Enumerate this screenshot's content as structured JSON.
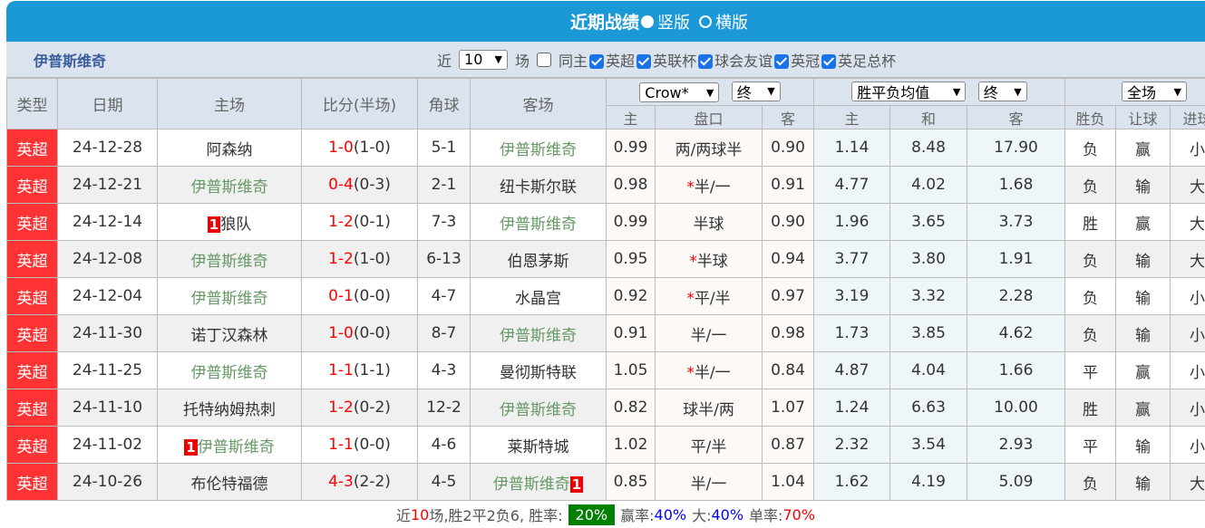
{
  "title": {
    "text": "近期战绩",
    "option_vertical": "竖版",
    "option_horizontal": "横版",
    "selected": "竖版"
  },
  "filter": {
    "team": "伊普斯维奇",
    "near_label": "近",
    "count": "10",
    "games_label": "场",
    "same_home_label": "同主",
    "same_home_checked": false,
    "competitions": [
      {
        "label": "英超",
        "checked": true
      },
      {
        "label": "英联杯",
        "checked": true
      },
      {
        "label": "球会友谊",
        "checked": true
      },
      {
        "label": "英冠",
        "checked": true
      },
      {
        "label": "英足总杯",
        "checked": true
      }
    ]
  },
  "headers": {
    "type": "类型",
    "date": "日期",
    "home": "主场",
    "score": "比分(半场)",
    "corner": "角球",
    "away": "客场",
    "odds_company": "Crow*",
    "odds_phase": "终",
    "euro_type": "胜平负均值",
    "euro_phase": "终",
    "range": "全场",
    "sub": {
      "ah_home": "主",
      "ah_line": "盘口",
      "ah_away": "客",
      "eu_home": "主",
      "eu_draw": "和",
      "eu_away": "客",
      "result": "胜负",
      "handicap": "让球",
      "goals": "进球"
    }
  },
  "rows": [
    {
      "league": "英超",
      "date": "24-12-28",
      "home": "阿森纳",
      "home_card": "",
      "score": "1-0",
      "half": "(1-0)",
      "corner": "5-1",
      "away": "伊普斯维奇",
      "away_card": "",
      "ah_home": "0.99",
      "ah_star": "",
      "ah_line": "两/两球半",
      "ah_away": "0.90",
      "eu_home": "1.14",
      "eu_draw": "8.48",
      "eu_away": "17.90",
      "result": "负",
      "handicap": "赢",
      "goals": "小",
      "ips": "away"
    },
    {
      "league": "英超",
      "date": "24-12-21",
      "home": "伊普斯维奇",
      "home_card": "",
      "score": "0-4",
      "half": "(0-3)",
      "corner": "2-1",
      "away": "纽卡斯尔联",
      "away_card": "",
      "ah_home": "0.98",
      "ah_star": "*",
      "ah_line": "半/一",
      "ah_away": "0.91",
      "eu_home": "4.77",
      "eu_draw": "4.02",
      "eu_away": "1.68",
      "result": "负",
      "handicap": "输",
      "goals": "大",
      "ips": "home"
    },
    {
      "league": "英超",
      "date": "24-12-14",
      "home": "狼队",
      "home_card": "1",
      "score": "1-2",
      "half": "(0-1)",
      "corner": "7-3",
      "away": "伊普斯维奇",
      "away_card": "",
      "ah_home": "0.99",
      "ah_star": "",
      "ah_line": "半球",
      "ah_away": "0.90",
      "eu_home": "1.96",
      "eu_draw": "3.65",
      "eu_away": "3.73",
      "result": "胜",
      "handicap": "赢",
      "goals": "大",
      "ips": "away"
    },
    {
      "league": "英超",
      "date": "24-12-08",
      "home": "伊普斯维奇",
      "home_card": "",
      "score": "1-2",
      "half": "(1-0)",
      "corner": "6-13",
      "away": "伯恩茅斯",
      "away_card": "",
      "ah_home": "0.95",
      "ah_star": "*",
      "ah_line": "半球",
      "ah_away": "0.94",
      "eu_home": "3.77",
      "eu_draw": "3.80",
      "eu_away": "1.91",
      "result": "负",
      "handicap": "输",
      "goals": "大",
      "ips": "home"
    },
    {
      "league": "英超",
      "date": "24-12-04",
      "home": "伊普斯维奇",
      "home_card": "",
      "score": "0-1",
      "half": "(0-0)",
      "corner": "4-7",
      "away": "水晶宫",
      "away_card": "",
      "ah_home": "0.92",
      "ah_star": "*",
      "ah_line": "平/半",
      "ah_away": "0.97",
      "eu_home": "3.19",
      "eu_draw": "3.32",
      "eu_away": "2.28",
      "result": "负",
      "handicap": "输",
      "goals": "小",
      "ips": "home"
    },
    {
      "league": "英超",
      "date": "24-11-30",
      "home": "诺丁汉森林",
      "home_card": "",
      "score": "1-0",
      "half": "(0-0)",
      "corner": "8-7",
      "away": "伊普斯维奇",
      "away_card": "",
      "ah_home": "0.91",
      "ah_star": "",
      "ah_line": "半/一",
      "ah_away": "0.98",
      "eu_home": "1.73",
      "eu_draw": "3.85",
      "eu_away": "4.62",
      "result": "负",
      "handicap": "输",
      "goals": "小",
      "ips": "away"
    },
    {
      "league": "英超",
      "date": "24-11-25",
      "home": "伊普斯维奇",
      "home_card": "",
      "score": "1-1",
      "half": "(1-1)",
      "corner": "4-3",
      "away": "曼彻斯特联",
      "away_card": "",
      "ah_home": "1.05",
      "ah_star": "*",
      "ah_line": "半/一",
      "ah_away": "0.84",
      "eu_home": "4.87",
      "eu_draw": "4.04",
      "eu_away": "1.66",
      "result": "平",
      "handicap": "赢",
      "goals": "小",
      "ips": "home"
    },
    {
      "league": "英超",
      "date": "24-11-10",
      "home": "托特纳姆热刺",
      "home_card": "",
      "score": "1-2",
      "half": "(0-2)",
      "corner": "12-2",
      "away": "伊普斯维奇",
      "away_card": "",
      "ah_home": "0.82",
      "ah_star": "",
      "ah_line": "球半/两",
      "ah_away": "1.07",
      "eu_home": "1.24",
      "eu_draw": "6.63",
      "eu_away": "10.00",
      "result": "胜",
      "handicap": "赢",
      "goals": "小",
      "ips": "away"
    },
    {
      "league": "英超",
      "date": "24-11-02",
      "home": "伊普斯维奇",
      "home_card": "1",
      "score": "1-1",
      "half": "(0-0)",
      "corner": "4-6",
      "away": "莱斯特城",
      "away_card": "",
      "ah_home": "1.02",
      "ah_star": "",
      "ah_line": "平/半",
      "ah_away": "0.87",
      "eu_home": "2.32",
      "eu_draw": "3.54",
      "eu_away": "2.93",
      "result": "平",
      "handicap": "输",
      "goals": "小",
      "ips": "home"
    },
    {
      "league": "英超",
      "date": "24-10-26",
      "home": "布伦特福德",
      "home_card": "",
      "score": "4-3",
      "half": "(2-2)",
      "corner": "4-5",
      "away": "伊普斯维奇",
      "away_card": "1",
      "ah_home": "0.85",
      "ah_star": "",
      "ah_line": "半/一",
      "ah_away": "1.04",
      "eu_home": "1.62",
      "eu_draw": "4.19",
      "eu_away": "5.09",
      "result": "负",
      "handicap": "输",
      "goals": "大",
      "ips": "away"
    }
  ],
  "footer": {
    "p1": "近",
    "games": "10",
    "p2": "场,胜2平2负6, 胜率:",
    "win_rate": "20%",
    "handicap_label": "赢率:",
    "handicap_rate": "40%",
    "big_label": "大:",
    "big_rate": "40%",
    "odd_label": "单率:",
    "odd_rate": "70%"
  },
  "colors": {
    "title_bar": "#1b98d6",
    "league": "#ff3333",
    "win_rate_bg": "#008000"
  }
}
